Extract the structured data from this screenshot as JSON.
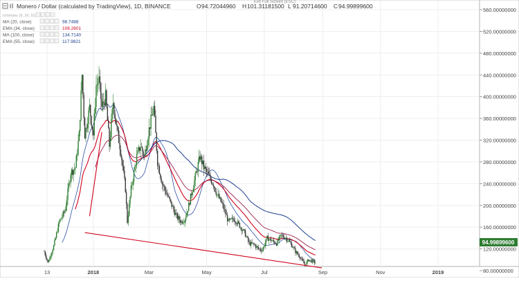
{
  "header": {
    "title": "Monero / Dollar (calculated by TradingView), 1D, BINANCE",
    "ohlc": [
      {
        "label": "O",
        "value": "94.72044960"
      },
      {
        "label": "H",
        "value": "101.31181500"
      },
      {
        "label": "L",
        "value": "91.20714600"
      },
      {
        "label": "C",
        "value": "94.99899600"
      }
    ],
    "fullscreen_hint": "Exit Full Screen (ESC)"
  },
  "indicators": [
    {
      "name": "Ichimoku (9, 26, 52, 26)",
      "value": "",
      "color": "#999999"
    },
    {
      "name": "MA (20, close)",
      "value": "98.7488",
      "color": "#1a3d8f"
    },
    {
      "name": "EMA (34, close)",
      "value": "108.2601",
      "color": "#d0021b"
    },
    {
      "name": "MA (100, close)",
      "value": "134.7140",
      "color": "#1a3d8f"
    },
    {
      "name": "EMA (55, close)",
      "value": "117.9821",
      "color": "#1a3d8f"
    }
  ],
  "icons": [
    "collapse-icon",
    "expand-icon",
    "eye-icon",
    "settings-icon",
    "close-icon",
    "more-icon"
  ],
  "colors": {
    "up": "#2e7d32",
    "down": "#3a3a3a",
    "trendline": "#d0021b",
    "price_badge": "#2e7d32"
  },
  "chart_data": {
    "type": "candlestick",
    "title": "Monero / Dollar (calculated by TradingView), 1D, BINANCE",
    "x_tick_labels": [
      "13",
      "2018",
      "Mar",
      "May",
      "Jul",
      "Sep",
      "Nov",
      "2019"
    ],
    "y_tick_labels": [
      "80.00000000",
      "120.00000000",
      "160.00000000",
      "200.00000000",
      "240.00000000",
      "280.00000000",
      "320.00000000",
      "360.00000000",
      "400.00000000",
      "440.00000000",
      "480.00000000",
      "520.00000000",
      "560.00000000"
    ],
    "ylim": [
      60,
      575
    ],
    "current_price": "94.99899600",
    "price_series": [
      [
        "2017-11-10",
        115
      ],
      [
        "2017-11-14",
        95
      ],
      [
        "2017-11-20",
        125
      ],
      [
        "2017-11-26",
        170
      ],
      [
        "2017-12-02",
        190
      ],
      [
        "2017-12-08",
        260
      ],
      [
        "2017-12-13",
        270
      ],
      [
        "2017-12-17",
        330
      ],
      [
        "2017-12-20",
        440
      ],
      [
        "2017-12-23",
        330
      ],
      [
        "2017-12-28",
        380
      ],
      [
        "2018-01-01",
        330
      ],
      [
        "2018-01-04",
        420
      ],
      [
        "2018-01-07",
        430
      ],
      [
        "2018-01-10",
        380
      ],
      [
        "2018-01-14",
        400
      ],
      [
        "2018-01-18",
        310
      ],
      [
        "2018-01-22",
        390
      ],
      [
        "2018-01-26",
        340
      ],
      [
        "2018-01-30",
        300
      ],
      [
        "2018-02-04",
        230
      ],
      [
        "2018-02-06",
        170
      ],
      [
        "2018-02-10",
        230
      ],
      [
        "2018-02-16",
        290
      ],
      [
        "2018-02-20",
        310
      ],
      [
        "2018-02-24",
        290
      ],
      [
        "2018-03-01",
        340
      ],
      [
        "2018-03-06",
        380
      ],
      [
        "2018-03-10",
        280
      ],
      [
        "2018-03-15",
        240
      ],
      [
        "2018-03-20",
        220
      ],
      [
        "2018-03-25",
        200
      ],
      [
        "2018-03-30",
        180
      ],
      [
        "2018-04-04",
        170
      ],
      [
        "2018-04-08",
        175
      ],
      [
        "2018-04-12",
        200
      ],
      [
        "2018-04-16",
        230
      ],
      [
        "2018-04-20",
        260
      ],
      [
        "2018-04-24",
        290
      ],
      [
        "2018-04-28",
        270
      ],
      [
        "2018-05-03",
        255
      ],
      [
        "2018-05-08",
        240
      ],
      [
        "2018-05-12",
        220
      ],
      [
        "2018-05-18",
        200
      ],
      [
        "2018-05-24",
        170
      ],
      [
        "2018-05-30",
        175
      ],
      [
        "2018-06-04",
        165
      ],
      [
        "2018-06-10",
        150
      ],
      [
        "2018-06-15",
        130
      ],
      [
        "2018-06-20",
        128
      ],
      [
        "2018-06-25",
        120
      ],
      [
        "2018-06-29",
        118
      ],
      [
        "2018-07-04",
        140
      ],
      [
        "2018-07-09",
        135
      ],
      [
        "2018-07-14",
        130
      ],
      [
        "2018-07-19",
        145
      ],
      [
        "2018-07-24",
        140
      ],
      [
        "2018-07-29",
        130
      ],
      [
        "2018-08-03",
        115
      ],
      [
        "2018-08-08",
        105
      ],
      [
        "2018-08-13",
        90
      ],
      [
        "2018-08-17",
        100
      ],
      [
        "2018-08-21",
        97
      ],
      [
        "2018-08-24",
        95
      ]
    ],
    "trendlines": [
      {
        "from": [
          "2017-12-23",
          150
        ],
        "to": [
          "2018-08-31",
          85
        ]
      }
    ]
  }
}
